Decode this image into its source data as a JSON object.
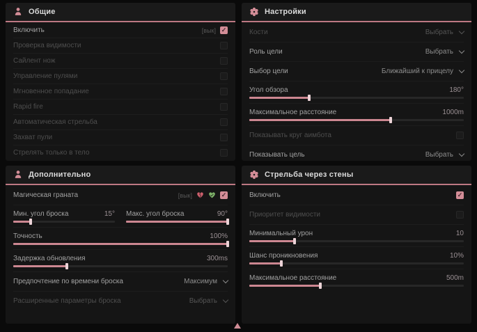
{
  "ui": {
    "accent_color": "#d38d97",
    "panel_bg": "#151515",
    "page_bg": "#0a0a0a"
  },
  "icons": {
    "check": "✓"
  },
  "panels": [
    {
      "title": "Общие",
      "icon": "person-icon",
      "rows": [
        {
          "label": "Включить",
          "type": "toggle",
          "prefix": "[вык]",
          "checked": true
        },
        {
          "label": "Проверка видимости",
          "type": "toggle",
          "checked": false,
          "dim": true
        },
        {
          "label": "Сайлент нож",
          "type": "toggle",
          "checked": false,
          "dim": true
        },
        {
          "label": "Управление пулями",
          "type": "toggle",
          "checked": false,
          "dim": true
        },
        {
          "label": "Мгновенное попадание",
          "type": "toggle",
          "checked": false,
          "dim": true
        },
        {
          "label": "Rapid fire",
          "type": "toggle",
          "checked": false,
          "dim": true
        },
        {
          "label": "Автоматическая стрельба",
          "type": "toggle",
          "checked": false,
          "dim": true
        },
        {
          "label": "Захват пули",
          "type": "toggle",
          "checked": false,
          "dim": true
        },
        {
          "label": "Стрелять только в тело",
          "type": "toggle",
          "checked": false,
          "dim": true
        }
      ]
    },
    {
      "title": "Настройки",
      "icon": "gear-icon",
      "rows": [
        {
          "label": "Кости",
          "type": "dropdown",
          "value": "Выбрать",
          "dim": true
        },
        {
          "label": "Роль цели",
          "type": "dropdown",
          "value": "Выбрать"
        },
        {
          "label": "Выбор цели",
          "type": "dropdown",
          "value": "Ближайший к прицелу"
        },
        {
          "label": "Угол обзора",
          "type": "slider",
          "value": "180°",
          "fill": 28
        },
        {
          "label": "Максимальное расстояние",
          "type": "slider",
          "value": "1000m",
          "fill": 66
        },
        {
          "label": "Показывать круг аимбота",
          "type": "toggle",
          "checked": false,
          "dim": true
        },
        {
          "label": "Показывать цель",
          "type": "dropdown",
          "value": "Выбрать"
        }
      ]
    },
    {
      "title": "Дополнительно",
      "icon": "person-icon",
      "rows": [
        {
          "label": "Магическая граната",
          "type": "toggle-icons",
          "prefix": "[вык]",
          "icons": [
            "heart-red-icon",
            "heart-green-icon"
          ],
          "checked": true
        },
        {
          "type": "slider-pair",
          "a": {
            "label": "Мин. угол броска",
            "value": "15°",
            "fill": 17
          },
          "b": {
            "label": "Макс. угол броска",
            "value": "90°",
            "fill": 100
          }
        },
        {
          "label": "Точность",
          "type": "slider",
          "value": "100%",
          "fill": 100
        },
        {
          "label": "Задержка обновления",
          "type": "slider",
          "value": "300ms",
          "fill": 25
        },
        {
          "label": "Предпочтение по времени броска",
          "type": "dropdown",
          "value": "Максимум"
        },
        {
          "label": "Расширенные параметры броска",
          "type": "dropdown",
          "value": "Выбрать",
          "dim": true
        }
      ]
    },
    {
      "title": "Стрельба через стены",
      "icon": "gear-icon",
      "rows": [
        {
          "label": "Включить",
          "type": "toggle",
          "checked": true
        },
        {
          "label": "Приоритет видимости",
          "type": "toggle",
          "checked": false,
          "dim": true
        },
        {
          "label": "Минимальный урон",
          "type": "slider",
          "value": "10",
          "fill": 21
        },
        {
          "label": "Шанс проникновения",
          "type": "slider",
          "value": "10%",
          "fill": 15
        },
        {
          "label": "Максимальное расстояние",
          "type": "slider",
          "value": "500m",
          "fill": 33
        }
      ]
    }
  ]
}
